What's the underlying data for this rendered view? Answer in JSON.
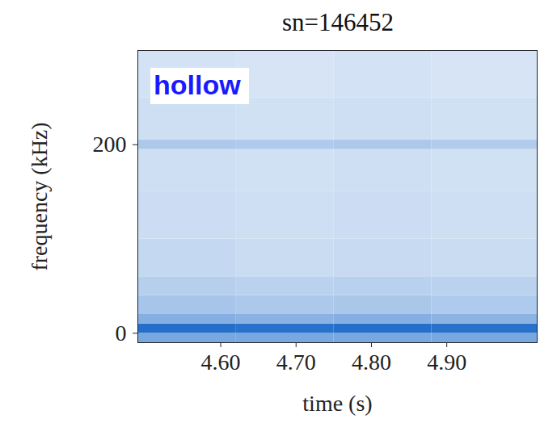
{
  "chart_data": {
    "type": "heatmap",
    "title": "sn=146452",
    "annotation": "hollow",
    "x_label": "time (s)",
    "y_label": "frequency (kHz)",
    "xlim": [
      4.49,
      5.02
    ],
    "ylim": [
      -10,
      300
    ],
    "xticks": [
      {
        "value": 4.6,
        "label": "4.60"
      },
      {
        "value": 4.7,
        "label": "4.70"
      },
      {
        "value": 4.8,
        "label": "4.80"
      },
      {
        "value": 4.9,
        "label": "4.90"
      }
    ],
    "yticks": [
      0,
      200
    ],
    "time_bins": [
      4.49,
      4.62,
      4.75,
      4.88,
      5.02
    ],
    "frequency_bins": [
      -10,
      0,
      10,
      20,
      40,
      60,
      100,
      150,
      195,
      205,
      250,
      300
    ],
    "values": [
      [
        0.55,
        0.55,
        0.55,
        0.55
      ],
      [
        0.9,
        0.88,
        0.9,
        0.88
      ],
      [
        0.5,
        0.48,
        0.5,
        0.47
      ],
      [
        0.36,
        0.34,
        0.35,
        0.33
      ],
      [
        0.3,
        0.28,
        0.29,
        0.28
      ],
      [
        0.24,
        0.22,
        0.23,
        0.22
      ],
      [
        0.21,
        0.2,
        0.21,
        0.2
      ],
      [
        0.2,
        0.19,
        0.2,
        0.19
      ],
      [
        0.34,
        0.33,
        0.34,
        0.32
      ],
      [
        0.2,
        0.19,
        0.2,
        0.19
      ],
      [
        0.18,
        0.17,
        0.18,
        0.17
      ]
    ],
    "value_range": [
      0,
      1
    ]
  }
}
